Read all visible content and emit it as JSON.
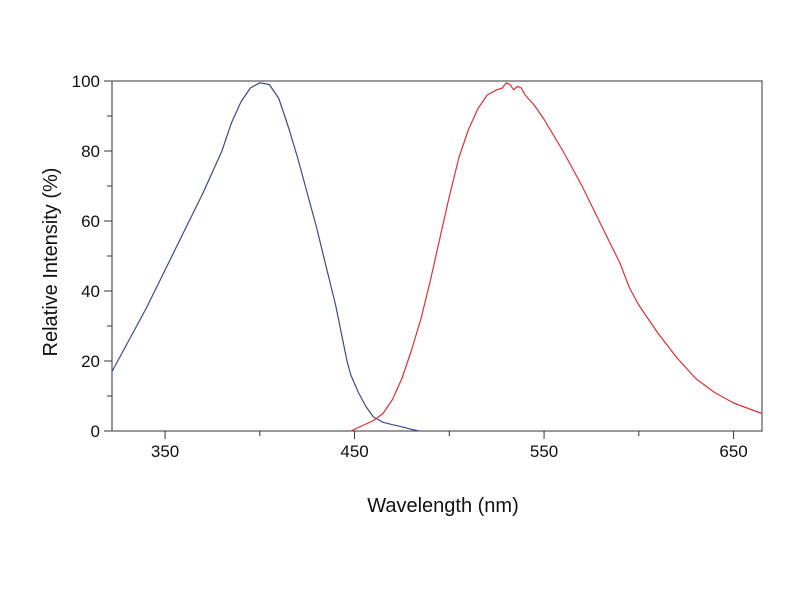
{
  "chart_data": {
    "type": "line",
    "title": "",
    "xlabel": "Wavelength (nm)",
    "ylabel": "Relative Intensity (%)",
    "xlim": [
      322,
      665
    ],
    "ylim": [
      0,
      100
    ],
    "x_ticks": [
      350,
      450,
      550,
      650
    ],
    "x_minor_ticks": [
      400,
      500,
      600
    ],
    "y_ticks": [
      0,
      20,
      40,
      60,
      80,
      100
    ],
    "y_minor_ticks": [
      10,
      30,
      50,
      70,
      90
    ],
    "x_tick_labels": [
      "350",
      "450",
      "550",
      "650"
    ],
    "y_tick_labels": [
      "0",
      "20",
      "40",
      "60",
      "80",
      "100"
    ],
    "grid": false,
    "legend": "none",
    "series": [
      {
        "color": "#3b4a8c",
        "points": [
          [
            322,
            17
          ],
          [
            330,
            25
          ],
          [
            340,
            35
          ],
          [
            350,
            46
          ],
          [
            360,
            57
          ],
          [
            370,
            68
          ],
          [
            380,
            80
          ],
          [
            385,
            88
          ],
          [
            390,
            94
          ],
          [
            395,
            98
          ],
          [
            400,
            99.5
          ],
          [
            405,
            99
          ],
          [
            410,
            95
          ],
          [
            415,
            87
          ],
          [
            420,
            78
          ],
          [
            425,
            68
          ],
          [
            430,
            58
          ],
          [
            435,
            47
          ],
          [
            440,
            36
          ],
          [
            443,
            28
          ],
          [
            446,
            20
          ],
          [
            448,
            16
          ],
          [
            452,
            11
          ],
          [
            456,
            7
          ],
          [
            460,
            4
          ],
          [
            465,
            2.5
          ],
          [
            470,
            1.8
          ],
          [
            475,
            1.2
          ],
          [
            480,
            0.5
          ],
          [
            484,
            0
          ]
        ]
      },
      {
        "color": "#d8323a",
        "points": [
          [
            448,
            0
          ],
          [
            452,
            1
          ],
          [
            456,
            2
          ],
          [
            460,
            3
          ],
          [
            465,
            5
          ],
          [
            470,
            9
          ],
          [
            475,
            15
          ],
          [
            480,
            23
          ],
          [
            485,
            32
          ],
          [
            490,
            43
          ],
          [
            495,
            55
          ],
          [
            500,
            67
          ],
          [
            505,
            78
          ],
          [
            510,
            86
          ],
          [
            515,
            92
          ],
          [
            520,
            96
          ],
          [
            525,
            97.5
          ],
          [
            528,
            98
          ],
          [
            530,
            99.5
          ],
          [
            532,
            99
          ],
          [
            534,
            97.5
          ],
          [
            536,
            98.5
          ],
          [
            538,
            98
          ],
          [
            540,
            96
          ],
          [
            545,
            93
          ],
          [
            550,
            89
          ],
          [
            560,
            80
          ],
          [
            570,
            70
          ],
          [
            580,
            59
          ],
          [
            590,
            48
          ],
          [
            595,
            41
          ],
          [
            600,
            36
          ],
          [
            610,
            28
          ],
          [
            620,
            21
          ],
          [
            630,
            15
          ],
          [
            640,
            11
          ],
          [
            650,
            8
          ],
          [
            660,
            6
          ],
          [
            665,
            5
          ]
        ]
      }
    ]
  }
}
